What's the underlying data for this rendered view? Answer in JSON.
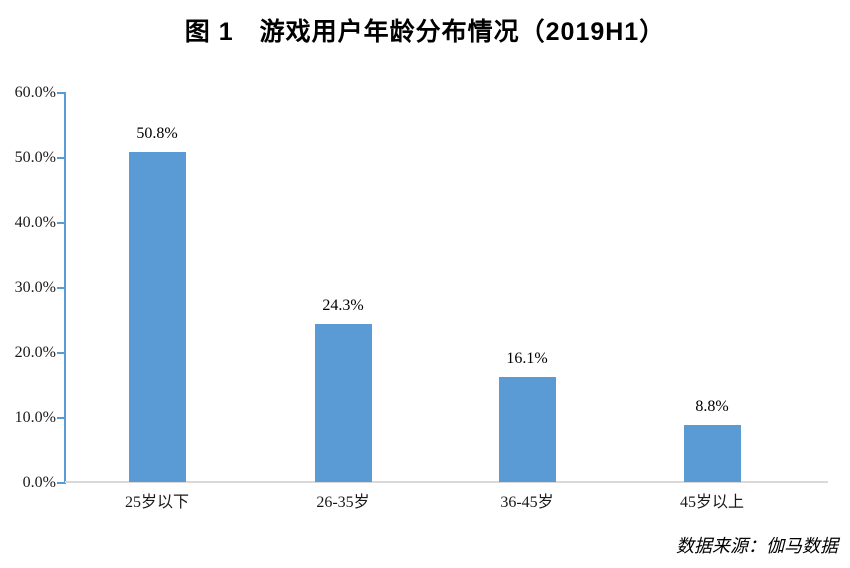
{
  "colors": {
    "bar": "#5B9BD5",
    "axis": "#5B9BD5",
    "baseline": "#D9D9D9",
    "label_text": "#1a1a1a"
  },
  "chart_data": {
    "type": "bar",
    "title": "图 1　游戏用户年龄分布情况（2019H1）",
    "categories": [
      "25岁以下",
      "26-35岁",
      "36-45岁",
      "45岁以上"
    ],
    "values": [
      50.8,
      24.3,
      16.1,
      8.8
    ],
    "value_labels": [
      "50.8%",
      "24.3%",
      "16.1%",
      "8.8%"
    ],
    "unit": "%",
    "ylim": [
      0,
      60
    ],
    "y_tick_step": 10,
    "y_ticks": [
      "60.0%",
      "50.0%",
      "40.0%",
      "30.0%",
      "20.0%",
      "10.0%",
      "0.0%"
    ],
    "grid": false,
    "legend": false,
    "xlabel": "",
    "ylabel": "",
    "source": "数据来源：伽马数据"
  }
}
